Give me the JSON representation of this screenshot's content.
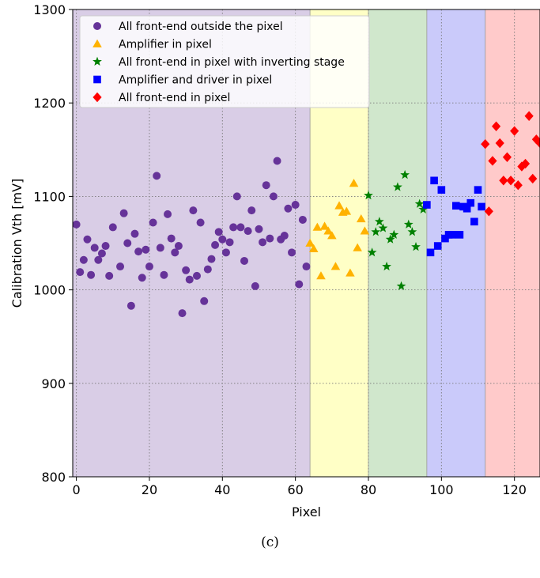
{
  "chart_data": {
    "type": "scatter",
    "xlabel": "Pixel",
    "ylabel": "Calibration Vth [mV]",
    "xlim": [
      -1,
      127
    ],
    "ylim": [
      800,
      1300
    ],
    "xticks": [
      0,
      20,
      40,
      60,
      80,
      100,
      120
    ],
    "yticks": [
      800,
      900,
      1000,
      1100,
      1200,
      1300
    ],
    "grid": true,
    "legend_position": "top-left",
    "regions": [
      {
        "x0": -1,
        "x1": 64,
        "color": "#d9cde6"
      },
      {
        "x0": 64,
        "x1": 80,
        "color": "#ffffc6"
      },
      {
        "x0": 80,
        "x1": 96,
        "color": "#d0e7cc"
      },
      {
        "x0": 96,
        "x1": 112,
        "color": "#cacafa"
      },
      {
        "x0": 112,
        "x1": 127,
        "color": "#ffcaca"
      }
    ],
    "series": [
      {
        "name": "All front-end outside the pixel",
        "marker": "circle",
        "color": "#663399",
        "points": [
          [
            0,
            1070
          ],
          [
            1,
            1019
          ],
          [
            2,
            1032
          ],
          [
            3,
            1054
          ],
          [
            4,
            1016
          ],
          [
            5,
            1045
          ],
          [
            6,
            1032
          ],
          [
            7,
            1039
          ],
          [
            8,
            1047
          ],
          [
            9,
            1015
          ],
          [
            10,
            1067
          ],
          [
            12,
            1025
          ],
          [
            13,
            1082
          ],
          [
            14,
            1050
          ],
          [
            15,
            983
          ],
          [
            16,
            1060
          ],
          [
            17,
            1041
          ],
          [
            18,
            1013
          ],
          [
            19,
            1043
          ],
          [
            20,
            1025
          ],
          [
            21,
            1072
          ],
          [
            22,
            1122
          ],
          [
            23,
            1045
          ],
          [
            24,
            1016
          ],
          [
            25,
            1081
          ],
          [
            26,
            1055
          ],
          [
            27,
            1040
          ],
          [
            28,
            1047
          ],
          [
            29,
            975
          ],
          [
            30,
            1021
          ],
          [
            31,
            1011
          ],
          [
            32,
            1085
          ],
          [
            33,
            1015
          ],
          [
            34,
            1072
          ],
          [
            35,
            988
          ],
          [
            36,
            1022
          ],
          [
            37,
            1033
          ],
          [
            38,
            1048
          ],
          [
            39,
            1062
          ],
          [
            40,
            1054
          ],
          [
            41,
            1040
          ],
          [
            42,
            1051
          ],
          [
            43,
            1067
          ],
          [
            44,
            1100
          ],
          [
            45,
            1067
          ],
          [
            46,
            1031
          ],
          [
            47,
            1063
          ],
          [
            48,
            1085
          ],
          [
            49,
            1004
          ],
          [
            50,
            1065
          ],
          [
            51,
            1051
          ],
          [
            52,
            1112
          ],
          [
            53,
            1055
          ],
          [
            54,
            1100
          ],
          [
            55,
            1138
          ],
          [
            56,
            1054
          ],
          [
            57,
            1058
          ],
          [
            58,
            1087
          ],
          [
            59,
            1040
          ],
          [
            60,
            1091
          ],
          [
            61,
            1006
          ],
          [
            62,
            1075
          ],
          [
            63,
            1025
          ]
        ]
      },
      {
        "name": "Amplifier in pixel",
        "marker": "triangle",
        "color": "#ffb200",
        "points": [
          [
            64,
            1050
          ],
          [
            65,
            1044
          ],
          [
            66,
            1067
          ],
          [
            67,
            1015
          ],
          [
            68,
            1068
          ],
          [
            69,
            1063
          ],
          [
            70,
            1058
          ],
          [
            71,
            1025
          ],
          [
            72,
            1090
          ],
          [
            73,
            1083
          ],
          [
            74,
            1084
          ],
          [
            75,
            1018
          ],
          [
            76,
            1114
          ],
          [
            77,
            1045
          ],
          [
            78,
            1076
          ],
          [
            79,
            1063
          ]
        ]
      },
      {
        "name": "All front-end in pixel with inverting stage",
        "marker": "star",
        "color": "#008000",
        "points": [
          [
            80,
            1101
          ],
          [
            81,
            1040
          ],
          [
            82,
            1062
          ],
          [
            83,
            1073
          ],
          [
            84,
            1066
          ],
          [
            85,
            1025
          ],
          [
            86,
            1054
          ],
          [
            87,
            1059
          ],
          [
            88,
            1110
          ],
          [
            89,
            1004
          ],
          [
            90,
            1123
          ],
          [
            91,
            1070
          ],
          [
            92,
            1062
          ],
          [
            93,
            1046
          ],
          [
            94,
            1092
          ],
          [
            95,
            1086
          ]
        ]
      },
      {
        "name": "Amplifier and driver in pixel",
        "marker": "square",
        "color": "#0000ff",
        "points": [
          [
            96,
            1091
          ],
          [
            97,
            1040
          ],
          [
            98,
            1117
          ],
          [
            99,
            1047
          ],
          [
            100,
            1107
          ],
          [
            101,
            1055
          ],
          [
            102,
            1059
          ],
          [
            103,
            1059
          ],
          [
            104,
            1090
          ],
          [
            105,
            1059
          ],
          [
            106,
            1089
          ],
          [
            107,
            1087
          ],
          [
            108,
            1093
          ],
          [
            109,
            1073
          ],
          [
            110,
            1107
          ],
          [
            111,
            1089
          ]
        ]
      },
      {
        "name": "All front-end in pixel",
        "marker": "diamond",
        "color": "#ff0000",
        "points": [
          [
            112,
            1156
          ],
          [
            113,
            1084
          ],
          [
            114,
            1138
          ],
          [
            115,
            1175
          ],
          [
            116,
            1157
          ],
          [
            117,
            1117
          ],
          [
            118,
            1142
          ],
          [
            119,
            1117
          ],
          [
            120,
            1170
          ],
          [
            121,
            1112
          ],
          [
            122,
            1132
          ],
          [
            123,
            1135
          ],
          [
            124,
            1186
          ],
          [
            125,
            1119
          ],
          [
            126,
            1161
          ],
          [
            127,
            1157
          ]
        ]
      }
    ]
  },
  "caption": "(c)"
}
